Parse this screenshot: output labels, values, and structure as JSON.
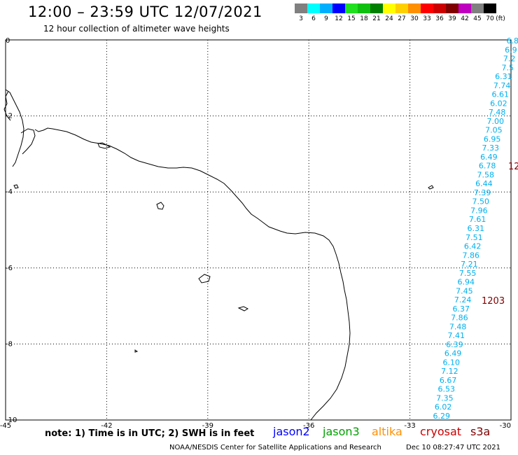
{
  "header": {
    "title": "12:00 – 23:59 UTC 12/07/2021",
    "subtitle": "12 hour collection of altimeter wave heights"
  },
  "colorbar": {
    "unit": "(ft)",
    "swatches": [
      {
        "color": "#808080",
        "label": "3"
      },
      {
        "color": "#00ffff",
        "label": "6"
      },
      {
        "color": "#00b0ff",
        "label": "9"
      },
      {
        "color": "#0000ff",
        "label": "12"
      },
      {
        "color": "#20e020",
        "label": "15"
      },
      {
        "color": "#10c010",
        "label": "18"
      },
      {
        "color": "#008000",
        "label": "21"
      },
      {
        "color": "#ffff00",
        "label": "24"
      },
      {
        "color": "#ffd000",
        "label": "27"
      },
      {
        "color": "#ff9000",
        "label": "30"
      },
      {
        "color": "#ff0000",
        "label": "33"
      },
      {
        "color": "#cc0000",
        "label": "36"
      },
      {
        "color": "#800000",
        "label": "39"
      },
      {
        "color": "#c000c0",
        "label": "42"
      },
      {
        "color": "#808080",
        "label": "45"
      },
      {
        "color": "#000000",
        "label": "70"
      }
    ]
  },
  "map": {
    "x_ticks": [
      "-45",
      "-42",
      "-39",
      "-36",
      "-33",
      "-30"
    ],
    "y_ticks": [
      "0",
      "-2",
      "-4",
      "-6",
      "-8",
      "-10"
    ],
    "track_color": "#00b0ee",
    "time_color": "#800000",
    "track_values": [
      "6.8",
      "6.9",
      "7.2",
      "7.5",
      "6.31",
      "7.74",
      "6.61",
      "6.02",
      "7.48",
      "7.00",
      "7.05",
      "6.95",
      "7.33",
      "6.49",
      "6.78",
      "7.58",
      "6.44",
      "7.39",
      "7.50",
      "7.96",
      "7.61",
      "6.31",
      "7.51",
      "6.42",
      "7.86",
      "7.21",
      "7.55",
      "6.94",
      "7.45",
      "7.24",
      "6.37",
      "7.86",
      "7.48",
      "7.41",
      "6.39",
      "6.49",
      "6.10",
      "7.12",
      "6.67",
      "6.53",
      "7.35",
      "6.02",
      "6.29"
    ],
    "time_labels": [
      "12",
      "1203"
    ]
  },
  "footer": {
    "note": "note:  1) Time is in UTC;  2) SWH is in feet",
    "satellites": [
      {
        "name": "jason2",
        "color": "#0000ff"
      },
      {
        "name": "jason3",
        "color": "#00a000"
      },
      {
        "name": "altika",
        "color": "#ff9000"
      },
      {
        "name": "cryosat",
        "color": "#cc0000"
      },
      {
        "name": "s3a",
        "color": "#800000"
      }
    ],
    "credit": "NOAA/NESDIS Center for Satellite Applications and Research",
    "timestamp": "Dec 10 08:27:47 UTC 2021"
  }
}
